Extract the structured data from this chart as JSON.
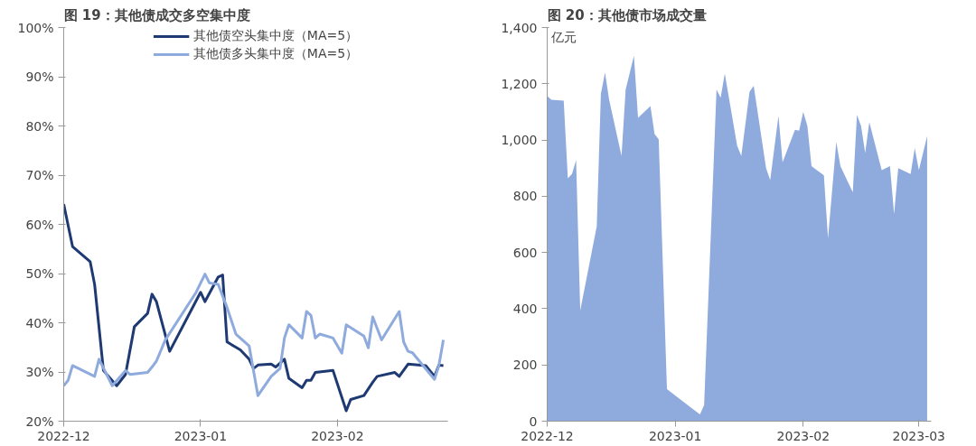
{
  "chart_data": [
    {
      "type": "line",
      "title": "图 19：其他债成交多空集中度",
      "legend": "top",
      "marker": "none",
      "line_style": "solid",
      "grid": false,
      "xlim": [
        "2022-12-01",
        "2023-02-26"
      ],
      "xticks": [
        "2022-12",
        "2023-01",
        "2023-02"
      ],
      "ylim": [
        20,
        100
      ],
      "yticks": [
        {
          "value": 20,
          "label": "20%"
        },
        {
          "value": 30,
          "label": "30%"
        },
        {
          "value": 40,
          "label": "40%"
        },
        {
          "value": 50,
          "label": "50%"
        },
        {
          "value": 60,
          "label": "60%"
        },
        {
          "value": 70,
          "label": "70%"
        },
        {
          "value": 80,
          "label": "80%"
        },
        {
          "value": 90,
          "label": "90%"
        },
        {
          "value": 100,
          "label": "100%"
        }
      ],
      "series": [
        {
          "name": "其他债空头集中度（MA=5）",
          "color": "#1f3a73",
          "x": [
            "2022-12-01",
            "2022-12-03",
            "2022-12-07",
            "2022-12-08",
            "2022-12-10",
            "2022-12-13",
            "2022-12-15",
            "2022-12-17",
            "2022-12-20",
            "2022-12-21",
            "2022-12-22",
            "2022-12-25",
            "2023-01-01",
            "2023-01-02",
            "2023-01-05",
            "2023-01-06",
            "2023-01-07",
            "2023-01-10",
            "2023-01-12",
            "2023-01-13",
            "2023-01-14",
            "2023-01-17",
            "2023-01-18",
            "2023-01-20",
            "2023-01-21",
            "2023-01-24",
            "2023-01-25",
            "2023-01-26",
            "2023-01-27",
            "2023-01-31",
            "2023-02-03",
            "2023-02-04",
            "2023-02-07",
            "2023-02-09",
            "2023-02-10",
            "2023-02-14",
            "2023-02-15",
            "2023-02-17",
            "2023-02-21",
            "2023-02-23",
            "2023-02-24",
            "2023-02-25"
          ],
          "values": [
            64.1,
            55.5,
            52.4,
            47.8,
            30.3,
            27.2,
            29.5,
            39.2,
            41.9,
            45.8,
            44.3,
            34.2,
            46.2,
            44.3,
            49.3,
            49.7,
            36.1,
            34.5,
            32.6,
            30.7,
            31.4,
            31.6,
            31.0,
            32.6,
            28.7,
            26.8,
            28.3,
            28.3,
            29.9,
            30.3,
            22.1,
            24.4,
            25.2,
            27.9,
            29.1,
            29.9,
            29.1,
            31.6,
            31.3,
            29.1,
            31.4,
            31.3
          ]
        },
        {
          "name": "其他债多头集中度（MA=5）",
          "color": "#8faadc",
          "x": [
            "2022-12-01",
            "2022-12-02",
            "2022-12-03",
            "2022-12-08",
            "2022-12-09",
            "2022-12-12",
            "2022-12-15",
            "2022-12-16",
            "2022-12-20",
            "2022-12-21",
            "2022-12-22",
            "2022-12-24",
            "2022-12-31",
            "2023-01-02",
            "2023-01-03",
            "2023-01-05",
            "2023-01-07",
            "2023-01-09",
            "2023-01-12",
            "2023-01-14",
            "2023-01-17",
            "2023-01-19",
            "2023-01-20",
            "2023-01-21",
            "2023-01-24",
            "2023-01-25",
            "2023-01-26",
            "2023-01-27",
            "2023-01-28",
            "2023-01-31",
            "2023-02-02",
            "2023-02-03",
            "2023-02-07",
            "2023-02-08",
            "2023-02-09",
            "2023-02-11",
            "2023-02-15",
            "2023-02-16",
            "2023-02-17",
            "2023-02-18",
            "2023-02-23",
            "2023-02-24",
            "2023-02-25"
          ],
          "values": [
            27.2,
            28.3,
            31.3,
            29.1,
            32.6,
            27.2,
            30.3,
            29.5,
            29.9,
            31.0,
            32.2,
            36.5,
            46.2,
            49.9,
            48.1,
            47.8,
            43.1,
            37.7,
            35.3,
            25.2,
            29.1,
            30.7,
            36.9,
            39.6,
            36.9,
            42.3,
            41.5,
            36.9,
            37.7,
            36.9,
            33.8,
            39.6,
            37.3,
            34.9,
            41.2,
            36.5,
            42.3,
            36.1,
            34.2,
            33.9,
            28.5,
            31.4,
            36.5
          ]
        }
      ]
    },
    {
      "type": "area",
      "title": "图 20：其他债市场成交量",
      "ylabel": "亿元",
      "legend": false,
      "grid": false,
      "xlim": [
        "2022-12-01",
        "2023-03-04"
      ],
      "xticks": [
        "2022-12",
        "2023-01",
        "2023-02",
        "2023-03"
      ],
      "ylim": [
        0,
        1400
      ],
      "yticks": [
        0,
        200,
        400,
        600,
        800,
        {
          "value": 1000,
          "label": "1,000"
        },
        {
          "value": 1200,
          "label": "1,200"
        },
        {
          "value": 1400,
          "label": "1,400"
        }
      ],
      "series": [
        {
          "color": "#8faadc",
          "x": [
            "2022-12-01",
            "2022-12-02",
            "2022-12-05",
            "2022-12-06",
            "2022-12-07",
            "2022-12-08",
            "2022-12-09",
            "2022-12-13",
            "2022-12-14",
            "2022-12-15",
            "2022-12-16",
            "2022-12-19",
            "2022-12-20",
            "2022-12-22",
            "2022-12-23",
            "2022-12-26",
            "2022-12-27",
            "2022-12-28",
            "2022-12-30",
            "2023-01-07",
            "2023-01-08",
            "2023-01-11",
            "2023-01-12",
            "2023-01-13",
            "2023-01-16",
            "2023-01-17",
            "2023-01-19",
            "2023-01-20",
            "2023-01-23",
            "2023-01-24",
            "2023-01-26",
            "2023-01-27",
            "2023-01-30",
            "2023-01-31",
            "2023-02-01",
            "2023-02-02",
            "2023-02-03",
            "2023-02-06",
            "2023-02-07",
            "2023-02-09",
            "2023-02-10",
            "2023-02-13",
            "2023-02-14",
            "2023-02-15",
            "2023-02-16",
            "2023-02-17",
            "2023-02-20",
            "2023-02-22",
            "2023-02-23",
            "2023-02-24",
            "2023-02-27",
            "2023-02-28",
            "2023-03-01",
            "2023-03-03"
          ],
          "values": [
            1157,
            1143,
            1140,
            864,
            879,
            929,
            393,
            693,
            1164,
            1240,
            1143,
            943,
            1179,
            1300,
            1079,
            1121,
            1021,
            1003,
            114,
            24,
            57,
            1179,
            1150,
            1236,
            979,
            943,
            1171,
            1193,
            900,
            857,
            1086,
            921,
            1036,
            1033,
            1100,
            1050,
            907,
            874,
            650,
            993,
            907,
            814,
            1089,
            1050,
            954,
            1064,
            893,
            907,
            736,
            900,
            879,
            971,
            893,
            1014
          ]
        }
      ]
    }
  ]
}
